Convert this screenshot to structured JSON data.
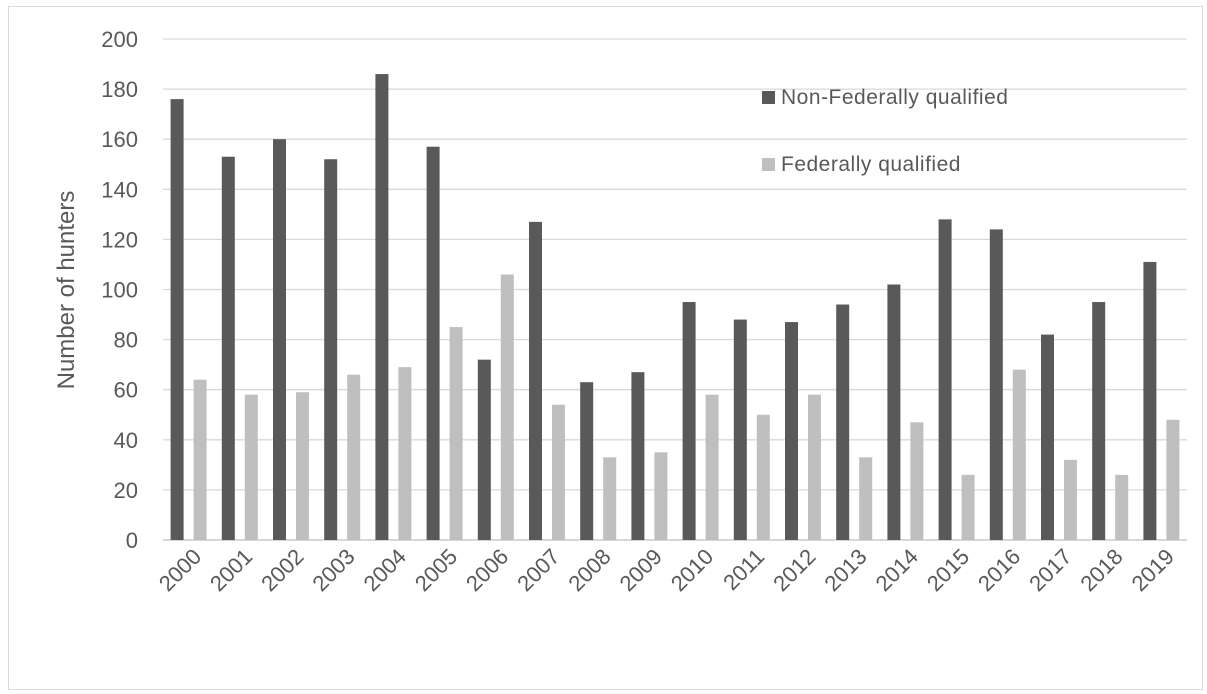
{
  "chart_data": {
    "type": "bar",
    "title": "",
    "xlabel": "",
    "ylabel": "Number of hunters",
    "ylim": [
      0,
      200
    ],
    "yticks": [
      0,
      20,
      40,
      60,
      80,
      100,
      120,
      140,
      160,
      180,
      200
    ],
    "grid": true,
    "legend_position": "top-right",
    "categories": [
      "2000",
      "2001",
      "2002",
      "2003",
      "2004",
      "2005",
      "2006",
      "2007",
      "2008",
      "2009",
      "2010",
      "2011",
      "2012",
      "2013",
      "2014",
      "2015",
      "2016",
      "2017",
      "2018",
      "2019"
    ],
    "series": [
      {
        "name": "Non-Federally qualified",
        "color": "#595959",
        "values": [
          176,
          153,
          160,
          152,
          186,
          157,
          72,
          127,
          63,
          67,
          95,
          88,
          87,
          94,
          102,
          128,
          124,
          82,
          95,
          111
        ]
      },
      {
        "name": "Federally qualified",
        "color": "#bfbfbf",
        "values": [
          64,
          58,
          59,
          66,
          69,
          85,
          106,
          54,
          33,
          35,
          58,
          50,
          58,
          33,
          47,
          26,
          68,
          32,
          26,
          48
        ]
      }
    ]
  }
}
